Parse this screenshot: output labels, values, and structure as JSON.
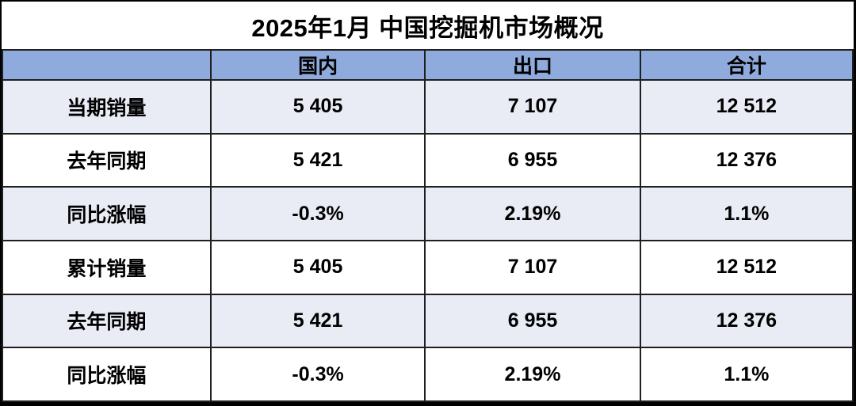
{
  "title": "2025年1月 中国挖掘机市场概况",
  "colors": {
    "header_bg": "#8FAADC",
    "band_row_bg": "#E9EBF5",
    "plain_row_bg": "#FFFFFF",
    "border": "#1F1F1F",
    "text": "#000000",
    "title_bg": "#FFFFFF"
  },
  "chart_data": {
    "type": "table",
    "title": "2025年1月 中国挖掘机市场概况",
    "columns": [
      "",
      "国内",
      "出口",
      "合计"
    ],
    "rows": [
      {
        "label": "当期销量",
        "values": [
          "5 405",
          "7 107",
          "12 512"
        ]
      },
      {
        "label": "去年同期",
        "values": [
          "5 421",
          "6 955",
          "12 376"
        ]
      },
      {
        "label": "同比涨幅",
        "values": [
          "-0.3%",
          "2.19%",
          "1.1%"
        ]
      },
      {
        "label": "累计销量",
        "values": [
          "5 405",
          "7 107",
          "12 512"
        ]
      },
      {
        "label": "去年同期",
        "values": [
          "5 421",
          "6 955",
          "12 376"
        ]
      },
      {
        "label": "同比涨幅",
        "values": [
          "-0.3%",
          "2.19%",
          "1.1%"
        ]
      }
    ],
    "numeric_rows": [
      {
        "label": "当期销量",
        "values": [
          5405,
          7107,
          12512
        ],
        "unit": "units"
      },
      {
        "label": "去年同期",
        "values": [
          5421,
          6955,
          12376
        ],
        "unit": "units"
      },
      {
        "label": "同比涨幅",
        "values": [
          -0.3,
          2.19,
          1.1
        ],
        "unit": "%"
      },
      {
        "label": "累计销量",
        "values": [
          5405,
          7107,
          12512
        ],
        "unit": "units"
      },
      {
        "label": "去年同期",
        "values": [
          5421,
          6955,
          12376
        ],
        "unit": "units"
      },
      {
        "label": "同比涨幅",
        "values": [
          -0.3,
          2.19,
          1.1
        ],
        "unit": "%"
      }
    ],
    "layout": {
      "banding": "alternate rows shaded light lavender starting with first data row",
      "text_align": "center",
      "all_text_bold": true
    }
  }
}
